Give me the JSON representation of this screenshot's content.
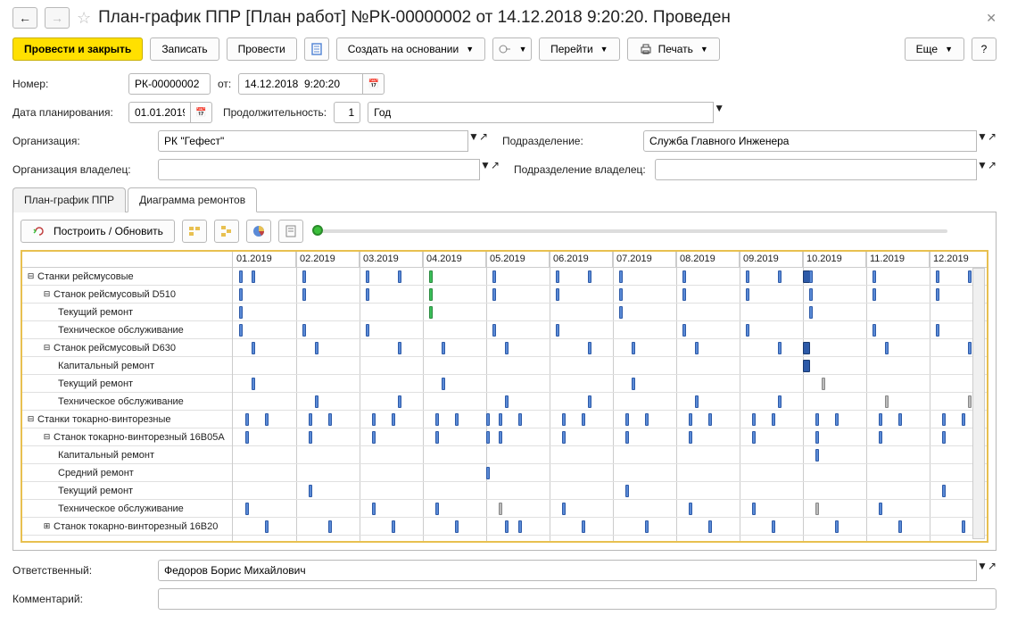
{
  "title": "План-график ППР [План работ] №РК-00000002 от 14.12.2018 9:20:20. Проведен",
  "toolbar": {
    "post_close": "Провести и закрыть",
    "write": "Записать",
    "post": "Провести",
    "create_based": "Создать на основании",
    "goto": "Перейти",
    "print": "Печать",
    "more": "Еще",
    "help": "?"
  },
  "form": {
    "number_label": "Номер:",
    "number": "РК-00000002",
    "from_label": "от:",
    "date": "14.12.2018  9:20:20",
    "plan_date_label": "Дата планирования:",
    "plan_date": "01.01.2019",
    "duration_label": "Продолжительность:",
    "duration": "1",
    "duration_unit": "Год",
    "org_label": "Организация:",
    "org": "РК \"Гефест\"",
    "dept_label": "Подразделение:",
    "dept": "Служба Главного Инженера",
    "org_owner_label": "Организация владелец:",
    "org_owner": "",
    "dept_owner_label": "Подразделение владелец:",
    "dept_owner": "",
    "responsible_label": "Ответственный:",
    "responsible": "Федоров Борис Михайлович",
    "comment_label": "Комментарий:",
    "comment": ""
  },
  "tabs": [
    {
      "label": "План-график ППР",
      "active": false
    },
    {
      "label": "Диаграмма ремонтов",
      "active": true
    }
  ],
  "subtoolbar": {
    "build": "Построить / Обновить"
  },
  "gantt": {
    "month_width": 71,
    "months": [
      "01.2019",
      "02.2019",
      "03.2019",
      "04.2019",
      "05.2019",
      "06.2019",
      "07.2019",
      "08.2019",
      "09.2019",
      "10.2019",
      "11.2019",
      "12.2019"
    ],
    "rows": [
      {
        "label": "Станки рейсмусовые",
        "indent": 0,
        "expand": "minus",
        "bars": [
          {
            "p": 0.1,
            "c": "blue"
          },
          {
            "p": 0.3,
            "c": "blue"
          },
          {
            "p": 1.1,
            "c": "blue"
          },
          {
            "p": 2.1,
            "c": "blue"
          },
          {
            "p": 2.6,
            "c": "blue"
          },
          {
            "p": 3.1,
            "c": "green"
          },
          {
            "p": 4.1,
            "c": "blue"
          },
          {
            "p": 5.1,
            "c": "blue"
          },
          {
            "p": 5.6,
            "c": "blue"
          },
          {
            "p": 6.1,
            "c": "blue"
          },
          {
            "p": 7.1,
            "c": "blue"
          },
          {
            "p": 8.1,
            "c": "blue"
          },
          {
            "p": 8.6,
            "c": "blue"
          },
          {
            "p": 9.0,
            "c": "dkblue",
            "w": 8
          },
          {
            "p": 9.1,
            "c": "blue"
          },
          {
            "p": 10.1,
            "c": "blue"
          },
          {
            "p": 11.1,
            "c": "blue"
          },
          {
            "p": 11.6,
            "c": "blue"
          }
        ]
      },
      {
        "label": "Станок рейсмусовый D510",
        "indent": 1,
        "expand": "minus",
        "bars": [
          {
            "p": 0.1,
            "c": "blue"
          },
          {
            "p": 1.1,
            "c": "blue"
          },
          {
            "p": 2.1,
            "c": "blue"
          },
          {
            "p": 3.1,
            "c": "green"
          },
          {
            "p": 4.1,
            "c": "blue"
          },
          {
            "p": 5.1,
            "c": "blue"
          },
          {
            "p": 6.1,
            "c": "blue"
          },
          {
            "p": 7.1,
            "c": "blue"
          },
          {
            "p": 8.1,
            "c": "blue"
          },
          {
            "p": 9.1,
            "c": "blue"
          },
          {
            "p": 10.1,
            "c": "blue"
          },
          {
            "p": 11.1,
            "c": "blue"
          }
        ]
      },
      {
        "label": "Текущий ремонт",
        "indent": 2,
        "bars": [
          {
            "p": 0.1,
            "c": "blue"
          },
          {
            "p": 3.1,
            "c": "green"
          },
          {
            "p": 6.1,
            "c": "blue"
          },
          {
            "p": 9.1,
            "c": "blue"
          }
        ]
      },
      {
        "label": "Техническое обслуживание",
        "indent": 2,
        "bars": [
          {
            "p": 0.1,
            "c": "blue"
          },
          {
            "p": 1.1,
            "c": "blue"
          },
          {
            "p": 2.1,
            "c": "blue"
          },
          {
            "p": 4.1,
            "c": "blue"
          },
          {
            "p": 5.1,
            "c": "blue"
          },
          {
            "p": 7.1,
            "c": "blue"
          },
          {
            "p": 8.1,
            "c": "blue"
          },
          {
            "p": 10.1,
            "c": "blue"
          },
          {
            "p": 11.1,
            "c": "blue"
          }
        ]
      },
      {
        "label": "Станок рейсмусовый D630",
        "indent": 1,
        "expand": "minus",
        "bars": [
          {
            "p": 0.3,
            "c": "blue"
          },
          {
            "p": 1.3,
            "c": "blue"
          },
          {
            "p": 2.6,
            "c": "blue"
          },
          {
            "p": 3.3,
            "c": "blue"
          },
          {
            "p": 4.3,
            "c": "blue"
          },
          {
            "p": 5.6,
            "c": "blue"
          },
          {
            "p": 6.3,
            "c": "blue"
          },
          {
            "p": 7.3,
            "c": "blue"
          },
          {
            "p": 8.6,
            "c": "blue"
          },
          {
            "p": 9.0,
            "c": "dkblue",
            "w": 8
          },
          {
            "p": 10.3,
            "c": "blue"
          },
          {
            "p": 11.6,
            "c": "blue"
          }
        ]
      },
      {
        "label": "Капитальный ремонт",
        "indent": 2,
        "bars": [
          {
            "p": 9.0,
            "c": "dkblue",
            "w": 8
          }
        ]
      },
      {
        "label": "Текущий ремонт",
        "indent": 2,
        "bars": [
          {
            "p": 0.3,
            "c": "blue"
          },
          {
            "p": 3.3,
            "c": "blue"
          },
          {
            "p": 6.3,
            "c": "blue"
          },
          {
            "p": 9.3,
            "c": "grey"
          }
        ]
      },
      {
        "label": "Техническое обслуживание",
        "indent": 2,
        "bars": [
          {
            "p": 1.3,
            "c": "blue"
          },
          {
            "p": 2.6,
            "c": "blue"
          },
          {
            "p": 4.3,
            "c": "blue"
          },
          {
            "p": 5.6,
            "c": "blue"
          },
          {
            "p": 7.3,
            "c": "blue"
          },
          {
            "p": 8.6,
            "c": "blue"
          },
          {
            "p": 10.3,
            "c": "grey"
          },
          {
            "p": 11.6,
            "c": "grey"
          }
        ]
      },
      {
        "label": "Станки токарно-винторезные",
        "indent": 0,
        "expand": "minus",
        "bars": [
          {
            "p": 0.2,
            "c": "blue"
          },
          {
            "p": 0.5,
            "c": "blue"
          },
          {
            "p": 1.2,
            "c": "blue"
          },
          {
            "p": 1.5,
            "c": "blue"
          },
          {
            "p": 2.2,
            "c": "blue"
          },
          {
            "p": 2.5,
            "c": "blue"
          },
          {
            "p": 3.2,
            "c": "blue"
          },
          {
            "p": 3.5,
            "c": "blue"
          },
          {
            "p": 4.0,
            "c": "blue"
          },
          {
            "p": 4.2,
            "c": "blue"
          },
          {
            "p": 4.5,
            "c": "blue"
          },
          {
            "p": 5.2,
            "c": "blue"
          },
          {
            "p": 5.5,
            "c": "blue"
          },
          {
            "p": 6.2,
            "c": "blue"
          },
          {
            "p": 6.5,
            "c": "blue"
          },
          {
            "p": 7.2,
            "c": "blue"
          },
          {
            "p": 7.5,
            "c": "blue"
          },
          {
            "p": 8.2,
            "c": "blue"
          },
          {
            "p": 8.5,
            "c": "blue"
          },
          {
            "p": 9.2,
            "c": "blue"
          },
          {
            "p": 9.5,
            "c": "blue"
          },
          {
            "p": 10.2,
            "c": "blue"
          },
          {
            "p": 10.5,
            "c": "blue"
          },
          {
            "p": 11.2,
            "c": "blue"
          },
          {
            "p": 11.5,
            "c": "blue"
          }
        ]
      },
      {
        "label": "Станок токарно-винторезный 16В05А",
        "indent": 1,
        "expand": "minus",
        "bars": [
          {
            "p": 0.2,
            "c": "blue"
          },
          {
            "p": 1.2,
            "c": "blue"
          },
          {
            "p": 2.2,
            "c": "blue"
          },
          {
            "p": 3.2,
            "c": "blue"
          },
          {
            "p": 4.0,
            "c": "blue"
          },
          {
            "p": 4.2,
            "c": "blue"
          },
          {
            "p": 5.2,
            "c": "blue"
          },
          {
            "p": 6.2,
            "c": "blue"
          },
          {
            "p": 7.2,
            "c": "blue"
          },
          {
            "p": 8.2,
            "c": "blue"
          },
          {
            "p": 9.2,
            "c": "blue"
          },
          {
            "p": 10.2,
            "c": "blue"
          },
          {
            "p": 11.2,
            "c": "blue"
          }
        ]
      },
      {
        "label": "Капитальный ремонт",
        "indent": 2,
        "bars": [
          {
            "p": 9.2,
            "c": "blue"
          }
        ]
      },
      {
        "label": "Средний ремонт",
        "indent": 2,
        "bars": [
          {
            "p": 4.0,
            "c": "blue"
          }
        ]
      },
      {
        "label": "Текущий ремонт",
        "indent": 2,
        "bars": [
          {
            "p": 1.2,
            "c": "blue"
          },
          {
            "p": 6.2,
            "c": "blue"
          },
          {
            "p": 11.2,
            "c": "blue"
          }
        ]
      },
      {
        "label": "Техническое обслуживание",
        "indent": 2,
        "bars": [
          {
            "p": 0.2,
            "c": "blue"
          },
          {
            "p": 2.2,
            "c": "blue"
          },
          {
            "p": 3.2,
            "c": "blue"
          },
          {
            "p": 4.2,
            "c": "grey"
          },
          {
            "p": 5.2,
            "c": "blue"
          },
          {
            "p": 7.2,
            "c": "blue"
          },
          {
            "p": 8.2,
            "c": "blue"
          },
          {
            "p": 9.2,
            "c": "grey"
          },
          {
            "p": 10.2,
            "c": "blue"
          }
        ]
      },
      {
        "label": "Станок токарно-винторезный 16В20",
        "indent": 1,
        "expand": "plus",
        "bars": [
          {
            "p": 0.5,
            "c": "blue"
          },
          {
            "p": 1.5,
            "c": "blue"
          },
          {
            "p": 2.5,
            "c": "blue"
          },
          {
            "p": 3.5,
            "c": "blue"
          },
          {
            "p": 4.3,
            "c": "blue"
          },
          {
            "p": 4.5,
            "c": "blue"
          },
          {
            "p": 5.5,
            "c": "blue"
          },
          {
            "p": 6.5,
            "c": "blue"
          },
          {
            "p": 7.5,
            "c": "blue"
          },
          {
            "p": 8.5,
            "c": "blue"
          },
          {
            "p": 9.5,
            "c": "blue"
          },
          {
            "p": 10.5,
            "c": "blue"
          },
          {
            "p": 11.5,
            "c": "blue"
          }
        ]
      }
    ]
  }
}
